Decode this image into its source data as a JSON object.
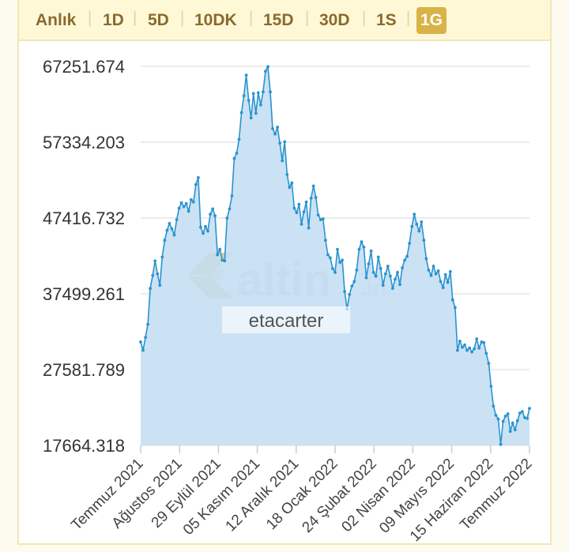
{
  "tabs": [
    {
      "label": "Anlık",
      "active": false
    },
    {
      "label": "1D",
      "active": false
    },
    {
      "label": "5D",
      "active": false
    },
    {
      "label": "10DK",
      "active": false
    },
    {
      "label": "15D",
      "active": false
    },
    {
      "label": "30D",
      "active": false
    },
    {
      "label": "1S",
      "active": false
    },
    {
      "label": "1G",
      "active": true
    }
  ],
  "watermark": {
    "brand": "altin",
    "suffix": ".in",
    "user": "etacarter"
  },
  "colors": {
    "line": "#2a93cf",
    "fill": "#c4def3",
    "accent": "#d8b348",
    "tab_text": "#8a6a2e"
  },
  "chart_data": {
    "type": "area",
    "title": "",
    "xlabel": "",
    "ylabel": "",
    "y_ticks": [
      "67251.674",
      "57334.203",
      "47416.732",
      "37499.261",
      "27581.789",
      "17664.318"
    ],
    "ylim": [
      17664.318,
      67251.674
    ],
    "x_tick_labels": [
      "Temmuz 2021",
      "Ağustos 2021",
      "29 Eylül 2021",
      "05 Kasım 2021",
      "12 Aralık 2021",
      "18 Ocak 2022",
      "24 Şubat 2022",
      "02 Nisan 2022",
      "09 Mayıs 2022",
      "15 Haziran 2022",
      "Temmuz 2022"
    ],
    "grid": true,
    "legend": "none",
    "values": [
      31200,
      30100,
      31800,
      33500,
      38200,
      39900,
      41800,
      40100,
      38600,
      42300,
      44500,
      45800,
      46700,
      46000,
      45200,
      47200,
      48700,
      49400,
      48900,
      49300,
      48300,
      49800,
      49500,
      51800,
      52700,
      46200,
      45400,
      46300,
      45700,
      47900,
      48600,
      47700,
      42600,
      43300,
      41900,
      41800,
      47400,
      48600,
      50300,
      55200,
      55900,
      57700,
      61200,
      63400,
      66100,
      62800,
      60500,
      63700,
      61100,
      63800,
      62200,
      63900,
      66600,
      67200,
      63900,
      59100,
      58400,
      59300,
      57200,
      54900,
      57400,
      53100,
      51400,
      52000,
      48700,
      48100,
      49200,
      46600,
      48200,
      49500,
      46100,
      50000,
      51600,
      50100,
      47800,
      47200,
      47300,
      44500,
      42600,
      42200,
      40800,
      40300,
      43300,
      41600,
      41900,
      37800,
      35500,
      37400,
      38500,
      39100,
      40600,
      43300,
      44300,
      43600,
      39600,
      41400,
      43100,
      40300,
      39800,
      42300,
      40800,
      38600,
      40100,
      41100,
      39800,
      38200,
      39400,
      40300,
      38700,
      40900,
      41900,
      42400,
      44100,
      46300,
      47900,
      46600,
      45700,
      46900,
      44500,
      42100,
      40600,
      39900,
      41100,
      40100,
      40500,
      39100,
      38300,
      40000,
      39000,
      40400,
      36700,
      35700,
      30100,
      31300,
      30500,
      30800,
      30100,
      30400,
      29900,
      30300,
      31600,
      30400,
      31200,
      31100,
      29700,
      28400,
      25400,
      22800,
      21600,
      21100,
      17800,
      20800,
      21500,
      21800,
      19500,
      20600,
      19700,
      20900,
      21900,
      22100,
      21300,
      21200,
      22500
    ]
  }
}
